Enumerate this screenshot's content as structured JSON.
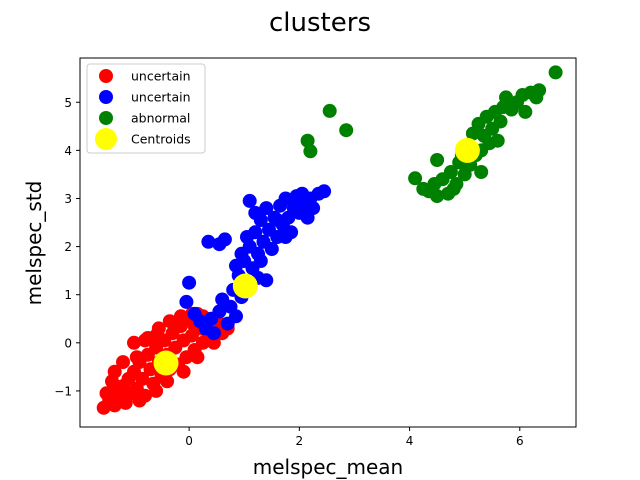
{
  "chart_data": {
    "type": "scatter",
    "title": "clusters",
    "xlabel": "melspec_mean",
    "ylabel": "melspec_std",
    "xlim": [
      -1.98,
      7.02
    ],
    "ylim": [
      -1.75,
      5.92
    ],
    "xticks": [
      0,
      2,
      4,
      6
    ],
    "yticks": [
      -1,
      0,
      1,
      2,
      3,
      4,
      5
    ],
    "grid": false,
    "legend_position": "top-left",
    "series": [
      {
        "name": "uncertain",
        "color": "#ff0000",
        "points": [
          [
            -1.55,
            -1.35
          ],
          [
            -1.45,
            -1.2
          ],
          [
            -1.5,
            -1.05
          ],
          [
            -1.35,
            -1.3
          ],
          [
            -1.3,
            -1.0
          ],
          [
            -1.25,
            -1.15
          ],
          [
            -1.2,
            -0.9
          ],
          [
            -1.15,
            -1.25
          ],
          [
            -1.1,
            -0.75
          ],
          [
            -1.05,
            -1.05
          ],
          [
            -1.0,
            -0.6
          ],
          [
            -0.95,
            -0.95
          ],
          [
            -0.9,
            -0.4
          ],
          [
            -0.85,
            -0.75
          ],
          [
            -0.8,
            -1.1
          ],
          [
            -0.75,
            -0.25
          ],
          [
            -0.7,
            -0.55
          ],
          [
            -0.65,
            -0.85
          ],
          [
            -0.6,
            -0.1
          ],
          [
            -0.55,
            -0.4
          ],
          [
            -0.5,
            -0.7
          ],
          [
            -0.45,
            0.05
          ],
          [
            -0.4,
            -0.25
          ],
          [
            -0.35,
            -0.55
          ],
          [
            -0.3,
            0.2
          ],
          [
            -0.25,
            -0.1
          ],
          [
            -0.2,
            -0.45
          ],
          [
            -0.15,
            0.35
          ],
          [
            -0.1,
            0.05
          ],
          [
            -0.05,
            -0.3
          ],
          [
            0.0,
            0.5
          ],
          [
            0.05,
            0.15
          ],
          [
            0.1,
            -0.15
          ],
          [
            0.15,
            0.6
          ],
          [
            0.2,
            0.3
          ],
          [
            0.25,
            0.0
          ],
          [
            0.3,
            0.45
          ],
          [
            0.35,
            0.15
          ],
          [
            0.4,
            0.35
          ],
          [
            0.5,
            0.25
          ],
          [
            0.6,
            0.2
          ],
          [
            0.7,
            0.3
          ],
          [
            -1.0,
            0.0
          ],
          [
            -0.8,
            0.05
          ],
          [
            -0.6,
            0.15
          ],
          [
            -1.2,
            -0.4
          ],
          [
            -1.35,
            -0.6
          ],
          [
            -0.95,
            -0.3
          ],
          [
            -0.75,
            0.1
          ],
          [
            -0.55,
            0.3
          ],
          [
            -0.35,
            0.45
          ],
          [
            -0.15,
            0.55
          ],
          [
            0.05,
            0.6
          ],
          [
            0.25,
            0.55
          ],
          [
            -1.4,
            -0.8
          ],
          [
            -0.25,
            0.4
          ],
          [
            -0.6,
            -1.0
          ],
          [
            -0.9,
            -1.2
          ],
          [
            -0.4,
            -0.8
          ],
          [
            -0.1,
            -0.6
          ],
          [
            0.15,
            -0.3
          ],
          [
            0.45,
            0.0
          ],
          [
            0.55,
            0.4
          ],
          [
            0.1,
            0.35
          ]
        ]
      },
      {
        "name": "uncertain",
        "color": "#0000ff",
        "points": [
          [
            -0.05,
            0.85
          ],
          [
            0.0,
            1.25
          ],
          [
            0.1,
            0.6
          ],
          [
            0.2,
            0.45
          ],
          [
            0.3,
            0.3
          ],
          [
            0.4,
            0.5
          ],
          [
            0.45,
            0.2
          ],
          [
            0.55,
            0.65
          ],
          [
            0.6,
            0.9
          ],
          [
            0.7,
            0.4
          ],
          [
            0.75,
            0.75
          ],
          [
            0.8,
            1.1
          ],
          [
            0.85,
            0.55
          ],
          [
            0.9,
            1.4
          ],
          [
            0.95,
            0.95
          ],
          [
            1.0,
            1.7
          ],
          [
            1.05,
            1.25
          ],
          [
            1.1,
            2.0
          ],
          [
            1.15,
            1.55
          ],
          [
            1.2,
            2.3
          ],
          [
            1.25,
            1.85
          ],
          [
            1.3,
            2.55
          ],
          [
            1.35,
            2.1
          ],
          [
            1.4,
            2.8
          ],
          [
            1.45,
            2.35
          ],
          [
            1.5,
            1.95
          ],
          [
            1.55,
            2.6
          ],
          [
            1.6,
            2.2
          ],
          [
            1.65,
            2.85
          ],
          [
            1.7,
            2.45
          ],
          [
            1.75,
            3.0
          ],
          [
            1.8,
            2.6
          ],
          [
            1.85,
            2.3
          ],
          [
            1.9,
            2.8
          ],
          [
            1.95,
            3.05
          ],
          [
            2.0,
            2.7
          ],
          [
            2.05,
            3.1
          ],
          [
            2.1,
            2.85
          ],
          [
            2.15,
            2.6
          ],
          [
            2.2,
            3.0
          ],
          [
            2.25,
            2.8
          ],
          [
            2.35,
            3.1
          ],
          [
            2.45,
            3.15
          ],
          [
            0.35,
            2.1
          ],
          [
            0.55,
            2.05
          ],
          [
            0.65,
            2.15
          ],
          [
            0.85,
            1.6
          ],
          [
            1.1,
            2.95
          ],
          [
            1.25,
            1.35
          ],
          [
            1.4,
            1.3
          ],
          [
            0.95,
            1.85
          ],
          [
            1.05,
            2.2
          ],
          [
            1.2,
            2.7
          ],
          [
            1.6,
            2.55
          ],
          [
            1.75,
            2.2
          ],
          [
            1.3,
            1.7
          ]
        ]
      },
      {
        "name": "abnormal",
        "color": "#008000",
        "points": [
          [
            2.55,
            4.82
          ],
          [
            2.85,
            4.42
          ],
          [
            2.15,
            4.2
          ],
          [
            2.2,
            3.98
          ],
          [
            4.1,
            3.42
          ],
          [
            4.25,
            3.2
          ],
          [
            4.35,
            3.15
          ],
          [
            4.45,
            3.3
          ],
          [
            4.5,
            3.05
          ],
          [
            4.5,
            3.8
          ],
          [
            4.6,
            3.4
          ],
          [
            4.7,
            3.1
          ],
          [
            4.75,
            3.55
          ],
          [
            4.85,
            3.3
          ],
          [
            4.9,
            3.75
          ],
          [
            5.0,
            3.5
          ],
          [
            5.05,
            4.1
          ],
          [
            5.1,
            3.7
          ],
          [
            5.15,
            4.35
          ],
          [
            5.2,
            3.9
          ],
          [
            5.25,
            4.55
          ],
          [
            5.3,
            4.0
          ],
          [
            5.35,
            4.3
          ],
          [
            5.4,
            4.7
          ],
          [
            5.45,
            4.15
          ],
          [
            5.5,
            4.45
          ],
          [
            5.55,
            4.8
          ],
          [
            5.6,
            4.2
          ],
          [
            5.65,
            4.6
          ],
          [
            5.7,
            4.9
          ],
          [
            5.75,
            5.1
          ],
          [
            5.85,
            4.85
          ],
          [
            5.95,
            5.0
          ],
          [
            6.05,
            5.15
          ],
          [
            6.1,
            4.8
          ],
          [
            6.2,
            5.2
          ],
          [
            6.3,
            5.1
          ],
          [
            6.35,
            5.25
          ],
          [
            6.65,
            5.62
          ],
          [
            5.3,
            3.55
          ],
          [
            4.95,
            3.9
          ],
          [
            4.8,
            3.2
          ]
        ]
      },
      {
        "name": "Centroids",
        "color": "#ffff00",
        "points": [
          [
            -0.42,
            -0.42
          ],
          [
            1.02,
            1.18
          ],
          [
            5.05,
            4.0
          ]
        ]
      }
    ]
  }
}
